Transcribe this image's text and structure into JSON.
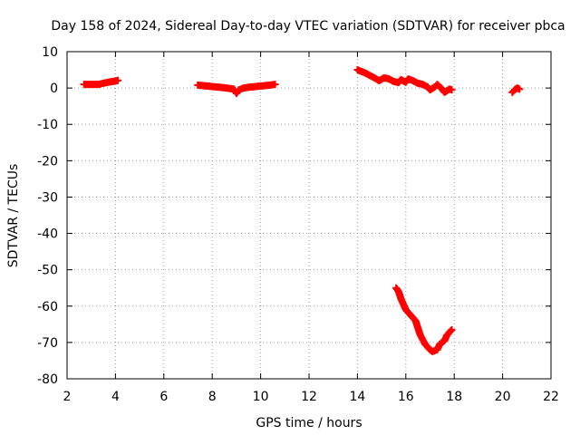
{
  "chart_data": {
    "type": "scatter",
    "title": "Day 158 of 2024, Sidereal Day-to-day VTEC variation (SDTVAR) for receiver pbca",
    "xlabel": "GPS time / hours",
    "ylabel": "SDTVAR / TECUs",
    "xlim": [
      2,
      22
    ],
    "ylim": [
      -80,
      10
    ],
    "xticks": [
      2,
      4,
      6,
      8,
      10,
      12,
      14,
      16,
      18,
      20,
      22
    ],
    "yticks": [
      10,
      0,
      -10,
      -20,
      -30,
      -40,
      -50,
      -60,
      -70,
      -80
    ],
    "grid": true,
    "marker_color": "#ff0000",
    "series": [
      {
        "name": "segment-1",
        "points": [
          [
            2.7,
            1.0
          ],
          [
            2.9,
            1.0
          ],
          [
            3.1,
            1.0
          ],
          [
            3.3,
            1.0
          ],
          [
            3.5,
            1.3
          ],
          [
            3.7,
            1.6
          ],
          [
            3.9,
            1.8
          ],
          [
            4.1,
            2.1
          ]
        ]
      },
      {
        "name": "segment-2",
        "points": [
          [
            7.4,
            0.8
          ],
          [
            7.7,
            0.6
          ],
          [
            8.0,
            0.4
          ],
          [
            8.3,
            0.2
          ],
          [
            8.6,
            0.0
          ],
          [
            8.9,
            -0.3
          ],
          [
            9.0,
            -1.5
          ],
          [
            9.1,
            -0.5
          ],
          [
            9.3,
            0.0
          ],
          [
            9.5,
            0.2
          ],
          [
            9.8,
            0.4
          ],
          [
            10.1,
            0.6
          ],
          [
            10.4,
            0.8
          ],
          [
            10.6,
            1.0
          ]
        ]
      },
      {
        "name": "segment-3",
        "points": [
          [
            14.0,
            5.0
          ],
          [
            14.3,
            4.2
          ],
          [
            14.5,
            3.5
          ],
          [
            14.7,
            2.8
          ],
          [
            14.9,
            2.0
          ],
          [
            15.1,
            2.8
          ],
          [
            15.3,
            2.5
          ],
          [
            15.5,
            1.8
          ],
          [
            15.7,
            1.5
          ],
          [
            15.8,
            2.3
          ],
          [
            16.0,
            1.6
          ],
          [
            16.1,
            2.5
          ],
          [
            16.3,
            2.0
          ],
          [
            16.5,
            1.3
          ],
          [
            16.7,
            1.0
          ],
          [
            16.9,
            0.3
          ],
          [
            17.0,
            -0.5
          ],
          [
            17.2,
            0.3
          ],
          [
            17.3,
            1.0
          ],
          [
            17.5,
            -0.3
          ],
          [
            17.6,
            -1.2
          ],
          [
            17.8,
            -0.3
          ],
          [
            17.9,
            -0.5
          ]
        ]
      },
      {
        "name": "segment-4",
        "points": [
          [
            15.6,
            -55
          ],
          [
            15.7,
            -56
          ],
          [
            15.8,
            -58
          ],
          [
            15.9,
            -59.5
          ],
          [
            16.0,
            -61
          ],
          [
            16.2,
            -62.5
          ],
          [
            16.4,
            -64
          ],
          [
            16.5,
            -66
          ],
          [
            16.6,
            -68
          ],
          [
            16.8,
            -70.5
          ],
          [
            17.0,
            -72
          ],
          [
            17.1,
            -72.5
          ],
          [
            17.3,
            -72
          ],
          [
            17.4,
            -70.5
          ],
          [
            17.6,
            -69.5
          ],
          [
            17.7,
            -68
          ],
          [
            17.9,
            -66.5
          ]
        ]
      },
      {
        "name": "segment-5",
        "points": [
          [
            20.4,
            -1.2
          ],
          [
            20.5,
            -0.5
          ],
          [
            20.6,
            0.0
          ],
          [
            20.7,
            -0.3
          ]
        ]
      }
    ]
  }
}
